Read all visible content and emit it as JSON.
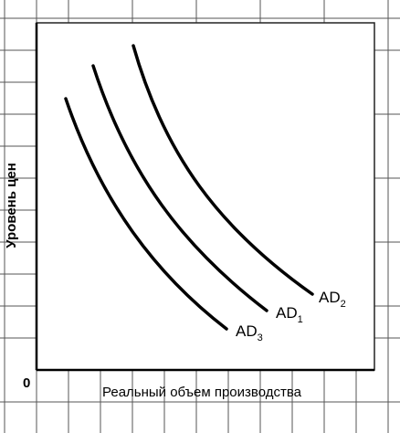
{
  "axes": {
    "y_label": "Уровень цен",
    "x_label": "Реальный объем производства",
    "origin": "0"
  },
  "curves": [
    {
      "label": "AD",
      "subscript": "3"
    },
    {
      "label": "AD",
      "subscript": "1"
    },
    {
      "label": "AD",
      "subscript": "2"
    }
  ]
}
